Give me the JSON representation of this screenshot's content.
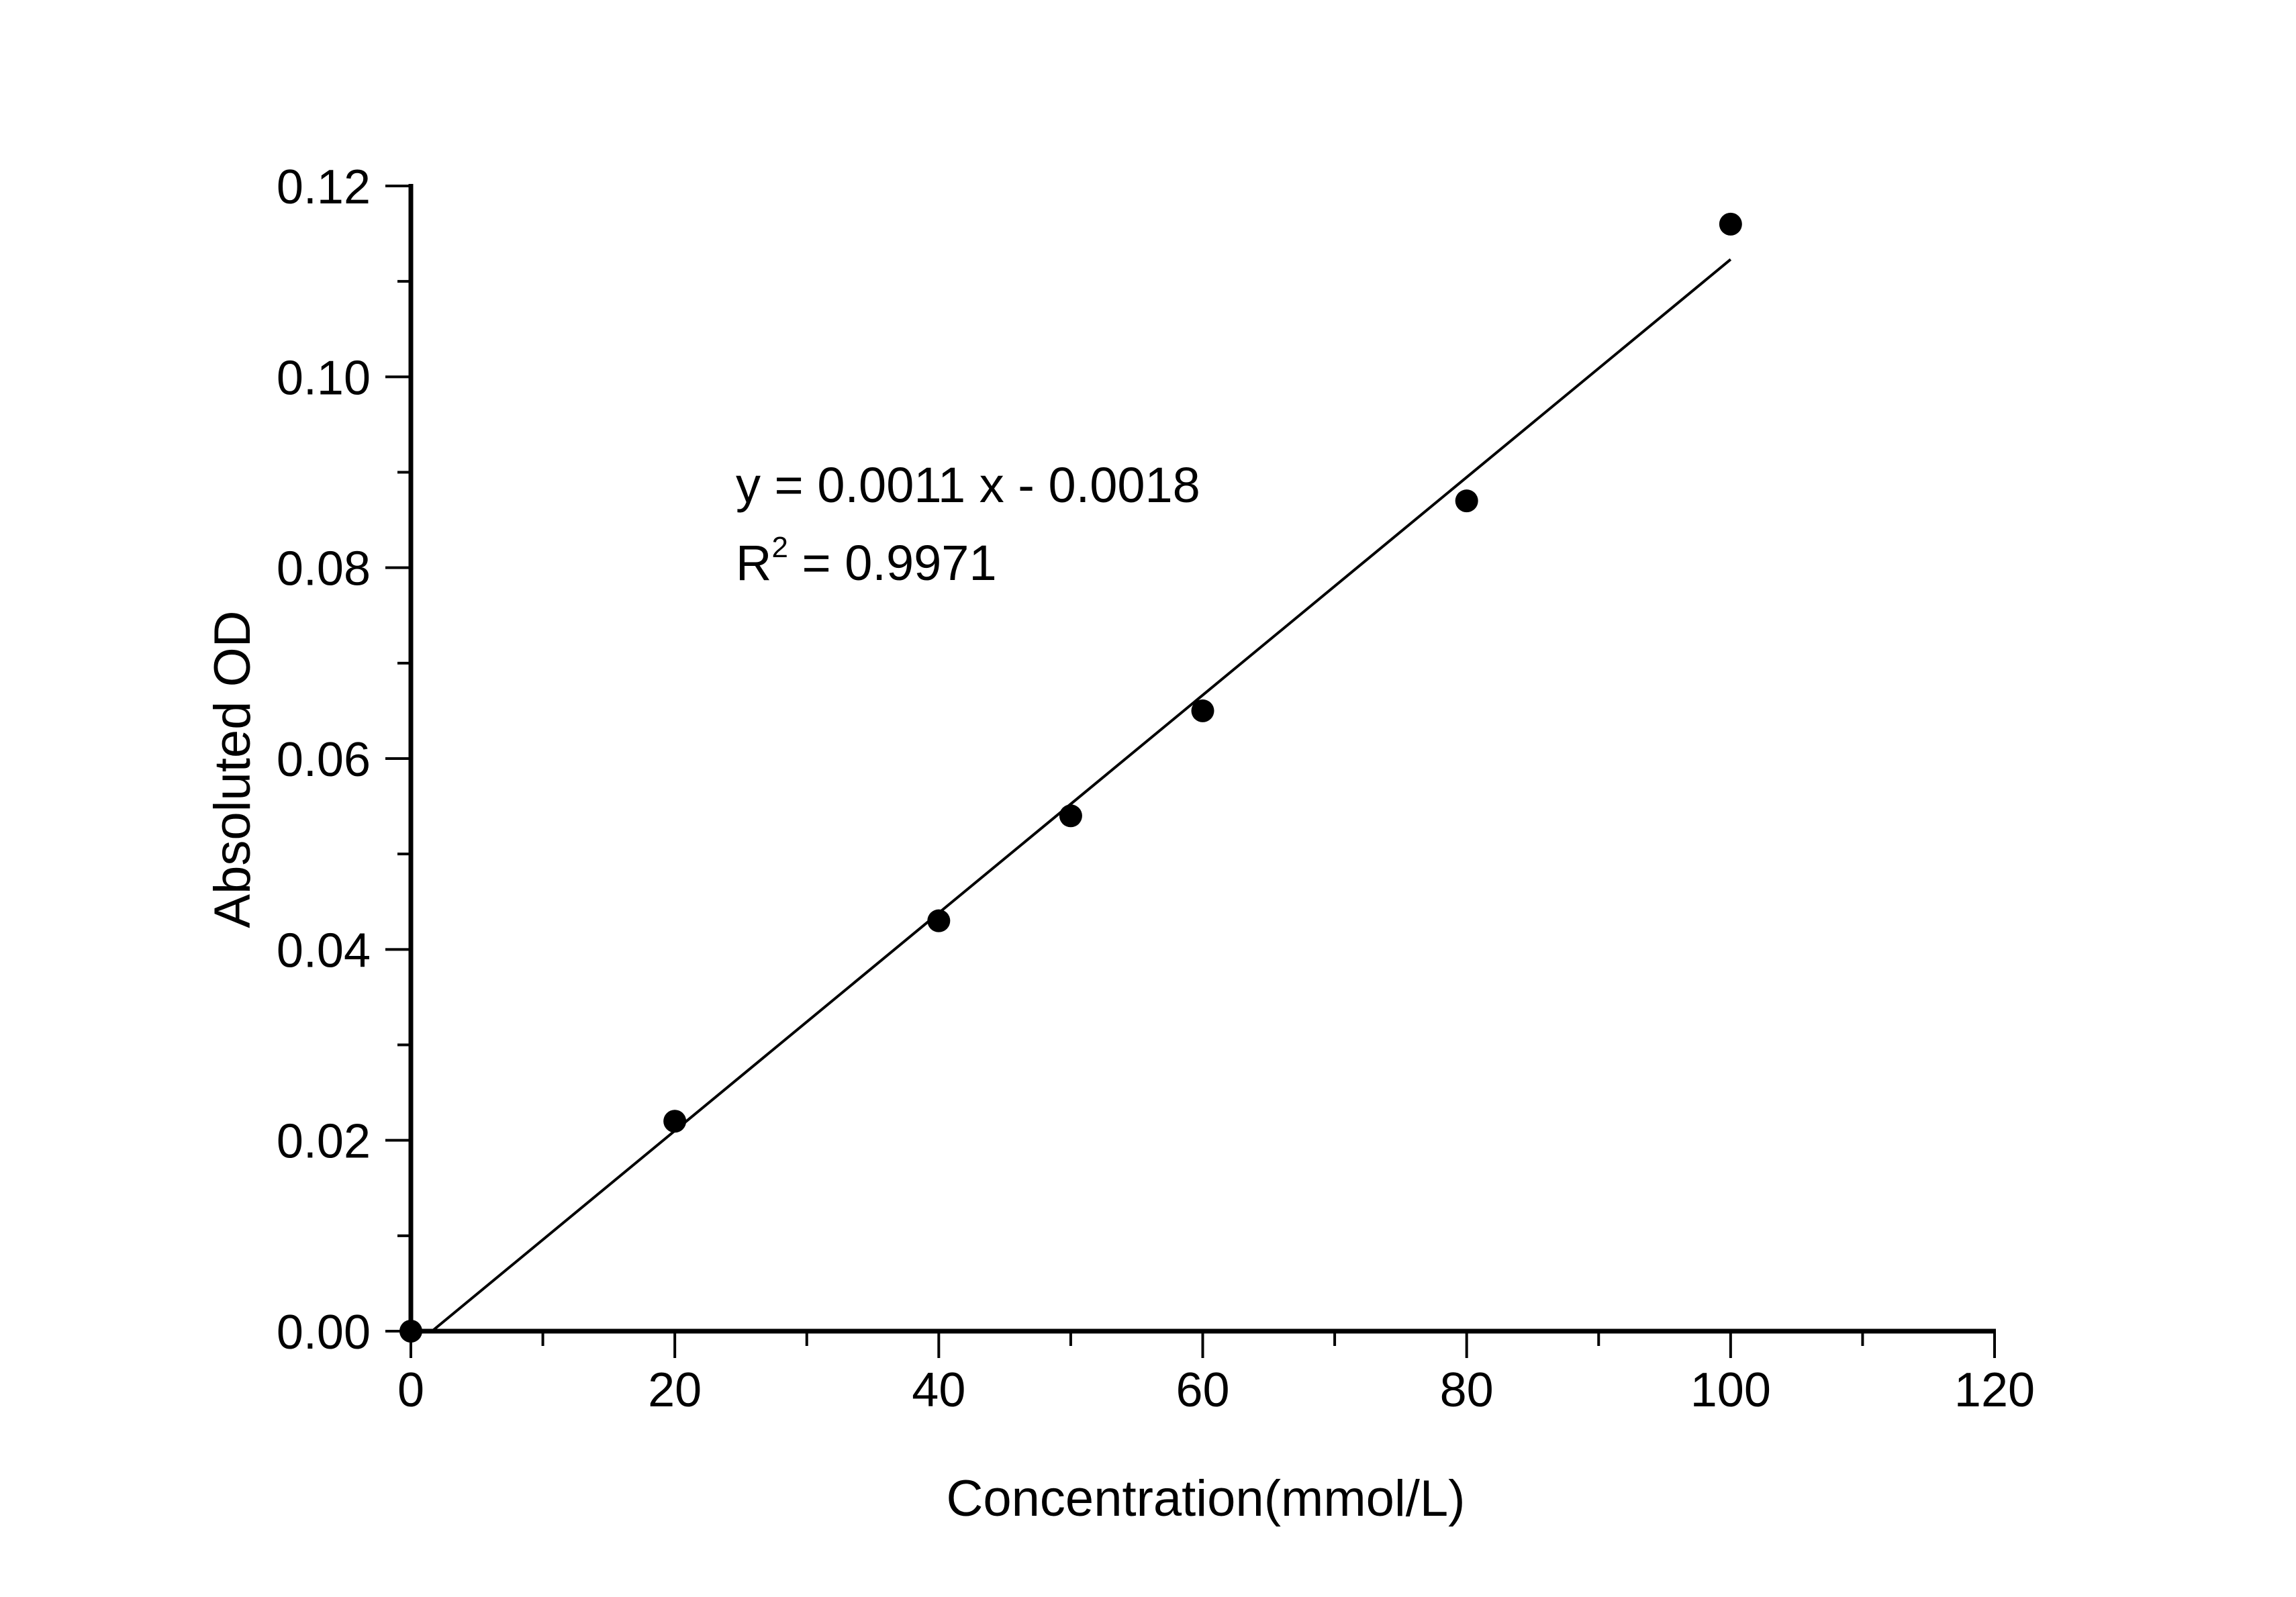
{
  "chart_data": {
    "type": "scatter",
    "title": "",
    "xlabel": "Concentration(mmol/L)",
    "ylabel": "Absoluted OD",
    "xlim": [
      0,
      120
    ],
    "ylim": [
      0,
      0.12
    ],
    "x_major_ticks": [
      0,
      20,
      40,
      60,
      80,
      100,
      120
    ],
    "x_tick_labels": [
      "0",
      "20",
      "40",
      "60",
      "80",
      "100",
      "120"
    ],
    "x_minor_ticks": [
      10,
      30,
      50,
      70,
      90,
      110
    ],
    "y_major_ticks": [
      0,
      0.02,
      0.04,
      0.06,
      0.08,
      0.1,
      0.12
    ],
    "y_tick_labels": [
      "0.00",
      "0.02",
      "0.04",
      "0.06",
      "0.08",
      "0.10",
      "0.12"
    ],
    "y_minor_ticks": [
      0.01,
      0.03,
      0.05,
      0.07,
      0.09,
      0.11
    ],
    "grid": false,
    "series": [
      {
        "name": "data",
        "x": [
          0,
          20,
          40,
          50,
          60,
          80,
          100
        ],
        "y": [
          0,
          0.022,
          0.043,
          0.054,
          0.065,
          0.087,
          0.116
        ],
        "color": "#000000"
      }
    ],
    "fit_line": {
      "x": [
        1.6,
        100
      ],
      "y": [
        0,
        0.1123
      ],
      "color": "#000000"
    },
    "annotations": {
      "equation": "y = 0.0011 x - 0.0018",
      "r2_prefix": "R",
      "r2_sup": "2",
      "r2_value": " = 0.9971"
    }
  }
}
